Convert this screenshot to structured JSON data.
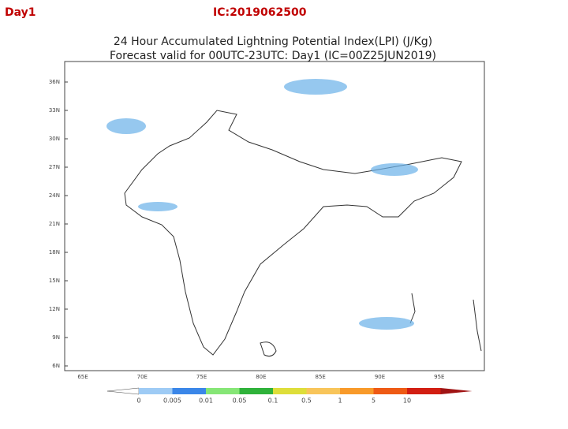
{
  "header": {
    "day": "Day1",
    "ic": "IC:2019062500"
  },
  "map": {
    "title": "24 Hour Accumulated Lightning Potential Index(LPI) (J/Kg)",
    "subtitle": "Forecast valid for 00UTC-23UTC: Day1 (IC=00Z25JUN2019)",
    "lat_labels": [
      "36N",
      "33N",
      "30N",
      "27N",
      "24N",
      "21N",
      "18N",
      "15N",
      "12N",
      "9N",
      "6N"
    ],
    "lon_labels": [
      "65E",
      "70E",
      "75E",
      "80E",
      "85E",
      "90E",
      "95E"
    ]
  },
  "colorbar": {
    "labels": [
      "0",
      "0.005",
      "0.01",
      "0.05",
      "0.1",
      "0.5",
      "1",
      "5",
      "10"
    ],
    "colors": [
      "#9ecbf5",
      "#3a86e8",
      "#86e676",
      "#2fb23a",
      "#dede3a",
      "#f8c55a",
      "#f89a2a",
      "#ee5a14",
      "#d21e12",
      "#a01414"
    ]
  }
}
